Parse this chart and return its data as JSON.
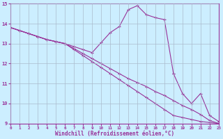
{
  "xlabel": "Windchill (Refroidissement éolien,°C)",
  "background_color": "#cceeff",
  "grid_color": "#aabbcc",
  "line_color": "#993399",
  "xlim": [
    0,
    23
  ],
  "ylim": [
    9,
    15
  ],
  "xticks": [
    0,
    1,
    2,
    3,
    4,
    5,
    6,
    7,
    8,
    9,
    10,
    11,
    12,
    13,
    14,
    15,
    16,
    17,
    18,
    19,
    20,
    21,
    22,
    23
  ],
  "yticks": [
    9,
    10,
    11,
    12,
    13,
    14,
    15
  ],
  "series": [
    {
      "x": [
        0,
        1,
        2,
        3,
        4,
        5,
        6,
        7,
        8,
        9,
        10,
        11,
        12,
        13,
        14,
        15,
        16,
        17,
        18,
        19,
        20,
        21,
        22,
        23
      ],
      "y": [
        13.8,
        13.65,
        13.5,
        13.35,
        13.2,
        13.1,
        13.0,
        12.85,
        12.7,
        12.55,
        13.05,
        13.55,
        13.85,
        14.7,
        14.9,
        14.45,
        14.3,
        14.2,
        11.5,
        null,
        null,
        null,
        null,
        null
      ]
    },
    {
      "x": [
        0,
        1,
        2,
        3,
        4,
        5,
        6,
        7,
        8,
        9,
        10,
        11,
        12,
        13,
        14,
        15,
        16,
        17,
        18,
        19,
        20,
        21,
        22,
        23
      ],
      "y": [
        13.8,
        13.65,
        13.5,
        13.35,
        13.2,
        13.1,
        13.0,
        12.75,
        12.5,
        12.25,
        12.0,
        11.75,
        11.5,
        11.25,
        11.05,
        10.85,
        10.6,
        10.4,
        10.15,
        9.9,
        9.7,
        9.45,
        9.15,
        9.0
      ]
    },
    {
      "x": [
        0,
        1,
        2,
        3,
        4,
        5,
        6,
        7,
        8,
        9,
        10,
        11,
        12,
        13,
        14,
        15,
        16,
        17,
        18,
        19,
        20,
        21,
        22,
        23
      ],
      "y": [
        13.8,
        13.65,
        13.5,
        13.35,
        13.2,
        13.1,
        13.0,
        12.7,
        12.4,
        12.1,
        11.8,
        11.5,
        11.2,
        10.9,
        10.6,
        10.3,
        10.0,
        9.7,
        9.4,
        9.3,
        9.2,
        9.1,
        9.05,
        9.0
      ]
    },
    {
      "x": [
        18,
        19,
        20,
        21,
        22,
        23
      ],
      "y": [
        11.5,
        10.5,
        10.0,
        10.5,
        9.4,
        9.1
      ]
    }
  ]
}
